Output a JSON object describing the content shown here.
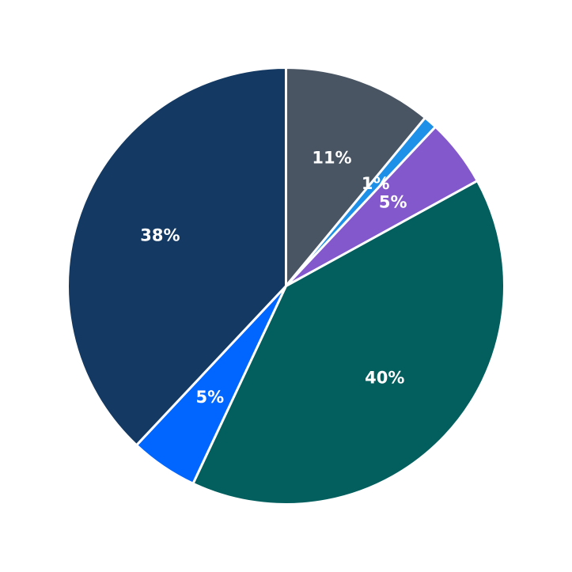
{
  "chart_data": {
    "type": "pie",
    "start": "top",
    "direction": "clockwise",
    "slices": [
      {
        "value": 11,
        "label": "11%",
        "color": "#4a5563"
      },
      {
        "value": 1,
        "label": "1%",
        "color": "#1e90e8"
      },
      {
        "value": 5,
        "label": "5%",
        "color": "#8358cc"
      },
      {
        "value": 40,
        "label": "40%",
        "color": "#035e5e"
      },
      {
        "value": 5,
        "label": "5%",
        "color": "#0066ff"
      },
      {
        "value": 38,
        "label": "38%",
        "color": "#143a63"
      }
    ]
  }
}
